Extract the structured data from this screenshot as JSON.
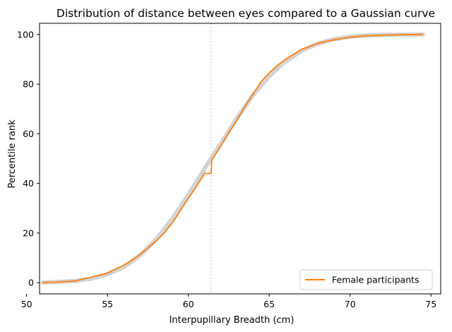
{
  "chart_data": {
    "type": "line",
    "title": "Distribution of distance between eyes compared to a Gaussian curve",
    "xlabel": "Interpupillary Breadth (cm)",
    "ylabel": "Percentile rank",
    "xlim": [
      50.8,
      75.6
    ],
    "ylim": [
      -4.5,
      104.5
    ],
    "xticks": [
      50,
      55,
      60,
      65,
      70,
      75
    ],
    "yticks": [
      0,
      20,
      40,
      60,
      80,
      100
    ],
    "grid": false,
    "legend_position": "lower-right",
    "reference_line": {
      "x": 61.4,
      "style": "dotted",
      "color": "#cccccc"
    },
    "reference_curve": {
      "style": "thick",
      "color": "#d3d3d3",
      "x": [
        51.0,
        52.0,
        53.0,
        54.0,
        55.0,
        56.0,
        57.0,
        58.0,
        59.0,
        60.0,
        61.0,
        61.4,
        62.0,
        63.0,
        64.0,
        65.0,
        66.0,
        67.0,
        68.0,
        69.0,
        70.0,
        71.0,
        72.0,
        73.0,
        74.5
      ],
      "y": [
        0.1,
        0.3,
        0.7,
        1.6,
        3.4,
        6.3,
        10.9,
        17.4,
        25.7,
        35.4,
        45.9,
        50.0,
        56.0,
        66.3,
        75.5,
        83.2,
        89.1,
        93.4,
        96.3,
        98.1,
        99.1,
        99.6,
        99.8,
        99.9,
        100.0
      ]
    },
    "series": [
      {
        "name": "Female participants",
        "color": "#ff7f0e",
        "x": [
          51.0,
          51.5,
          52.0,
          52.5,
          53.0,
          53.5,
          54.0,
          54.5,
          55.0,
          55.5,
          56.0,
          56.5,
          57.0,
          57.5,
          58.0,
          58.5,
          59.0,
          59.5,
          60.0,
          60.5,
          61.0,
          61.4,
          61.45,
          62.0,
          62.5,
          63.0,
          63.5,
          64.0,
          64.5,
          65.0,
          65.5,
          66.0,
          66.5,
          67.0,
          67.5,
          68.0,
          68.5,
          69.0,
          69.5,
          70.0,
          70.5,
          71.0,
          72.0,
          73.0,
          74.5
        ],
        "y": [
          0.0,
          0.2,
          0.3,
          0.5,
          0.7,
          1.5,
          2.2,
          3.0,
          3.9,
          5.5,
          7.0,
          9.0,
          11.3,
          14.0,
          16.7,
          20.0,
          24.0,
          29.0,
          34.0,
          38.8,
          44.0,
          44.0,
          49.5,
          55.0,
          60.5,
          65.5,
          71.0,
          76.0,
          81.0,
          84.5,
          87.5,
          90.0,
          92.0,
          94.0,
          95.2,
          96.4,
          97.2,
          97.8,
          98.4,
          98.9,
          99.2,
          99.5,
          99.7,
          99.9,
          100.0
        ]
      }
    ]
  }
}
